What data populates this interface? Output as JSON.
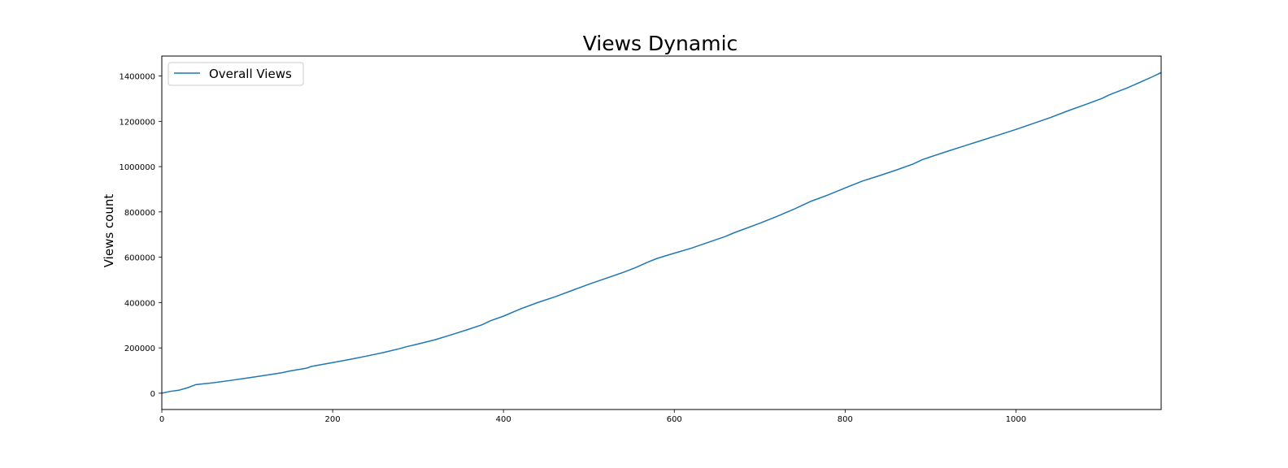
{
  "chart_data": {
    "type": "line",
    "title": "Views Dynamic",
    "xlabel": "",
    "ylabel": "Views count",
    "xlim": [
      0,
      1170
    ],
    "ylim": [
      -72000,
      1488000
    ],
    "x_ticks": [
      0,
      200,
      400,
      600,
      800,
      1000
    ],
    "y_ticks": [
      0,
      200000,
      400000,
      600000,
      800000,
      1000000,
      1200000,
      1400000
    ],
    "grid": false,
    "legend_position": "upper left",
    "series": [
      {
        "name": "Overall Views",
        "color": "#1f77b4",
        "points": [
          [
            0,
            0
          ],
          [
            10,
            8000
          ],
          [
            20,
            13000
          ],
          [
            30,
            24000
          ],
          [
            40,
            38000
          ],
          [
            60,
            46000
          ],
          [
            80,
            56000
          ],
          [
            100,
            67000
          ],
          [
            120,
            78000
          ],
          [
            140,
            90000
          ],
          [
            150,
            98000
          ],
          [
            170,
            111000
          ],
          [
            175,
            118000
          ],
          [
            200,
            135000
          ],
          [
            220,
            149000
          ],
          [
            240,
            164000
          ],
          [
            260,
            180000
          ],
          [
            280,
            198000
          ],
          [
            285,
            204000
          ],
          [
            300,
            217000
          ],
          [
            320,
            236000
          ],
          [
            340,
            259000
          ],
          [
            360,
            283000
          ],
          [
            375,
            302000
          ],
          [
            385,
            320000
          ],
          [
            400,
            340000
          ],
          [
            420,
            372000
          ],
          [
            440,
            400000
          ],
          [
            460,
            425000
          ],
          [
            480,
            453000
          ],
          [
            500,
            481000
          ],
          [
            520,
            507000
          ],
          [
            540,
            533000
          ],
          [
            555,
            555000
          ],
          [
            570,
            580000
          ],
          [
            580,
            595000
          ],
          [
            600,
            618000
          ],
          [
            620,
            640000
          ],
          [
            640,
            666000
          ],
          [
            660,
            692000
          ],
          [
            670,
            708000
          ],
          [
            700,
            750000
          ],
          [
            720,
            780000
          ],
          [
            740,
            812000
          ],
          [
            760,
            847000
          ],
          [
            780,
            875000
          ],
          [
            800,
            906000
          ],
          [
            820,
            936000
          ],
          [
            840,
            960000
          ],
          [
            860,
            985000
          ],
          [
            880,
            1012000
          ],
          [
            890,
            1030000
          ],
          [
            900,
            1043000
          ],
          [
            920,
            1068000
          ],
          [
            940,
            1092000
          ],
          [
            960,
            1116000
          ],
          [
            980,
            1140000
          ],
          [
            1000,
            1164000
          ],
          [
            1020,
            1190000
          ],
          [
            1040,
            1216000
          ],
          [
            1060,
            1245000
          ],
          [
            1080,
            1272000
          ],
          [
            1100,
            1300000
          ],
          [
            1110,
            1318000
          ],
          [
            1130,
            1347000
          ],
          [
            1150,
            1380000
          ],
          [
            1160,
            1397000
          ],
          [
            1170,
            1415000
          ]
        ]
      }
    ]
  }
}
